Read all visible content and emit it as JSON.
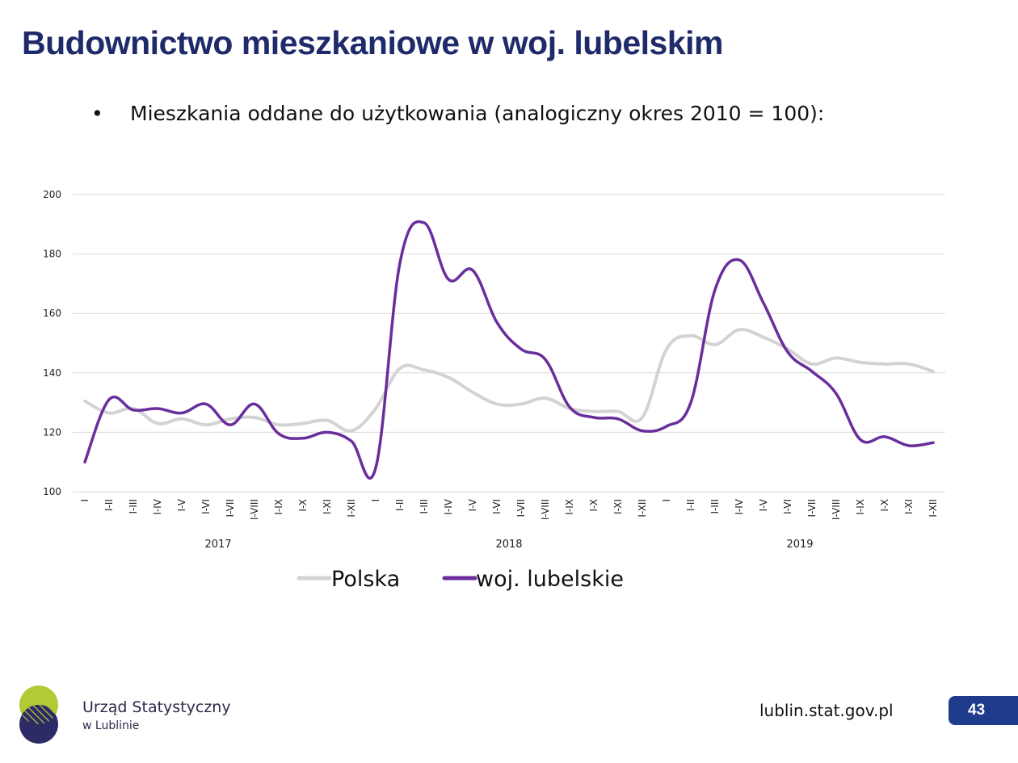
{
  "slide": {
    "title": "Budownictwo mieszkaniowe w woj. lubelskim",
    "bullet_symbol": "•",
    "bullet_text": "Mieszkania oddane do użytkowania (analogiczny okres 2010 = 100):",
    "footer": {
      "org_line1": "Urząd Statystyczny",
      "org_line2": "w Lublinie",
      "website": "lublin.stat.gov.pl",
      "page_number": "43"
    }
  },
  "colors": {
    "title": "#1f2a6b",
    "polska": "#d3d3d3",
    "lubelskie": "#6a2e9c",
    "badge": "#1f3b8c",
    "logo_green": "#b3c935",
    "logo_navy": "#2d2b66"
  },
  "chart_data": {
    "type": "line",
    "categories": [
      "I",
      "I-II",
      "I-III",
      "I-IV",
      "I-V",
      "I-VI",
      "I-VII",
      "I-VIII",
      "I-IX",
      "I-X",
      "I-XI",
      "I-XII",
      "I",
      "I-II",
      "I-III",
      "I-IV",
      "I-V",
      "I-VI",
      "I-VII",
      "I-VIII",
      "I-IX",
      "I-X",
      "I-XI",
      "I-XII",
      "I",
      "I-II",
      "I-III",
      "I-IV",
      "I-V",
      "I-VI",
      "I-VII",
      "I-VIII",
      "I-IX",
      "I-X",
      "I-XI",
      "I-XII"
    ],
    "groups": [
      {
        "label": "2017",
        "start": 0,
        "end": 11
      },
      {
        "label": "2018",
        "start": 12,
        "end": 23
      },
      {
        "label": "2019",
        "start": 24,
        "end": 35
      }
    ],
    "series": [
      {
        "name": "Polska",
        "color": "#d3d3d3",
        "values": [
          130.5,
          126.5,
          128,
          123,
          124.5,
          122.5,
          124.5,
          125,
          122.5,
          123,
          124,
          120.5,
          128,
          141.5,
          141,
          138.5,
          133.5,
          129.5,
          129.5,
          131.5,
          128,
          127,
          127,
          125,
          148,
          152.5,
          149.5,
          154.5,
          152,
          148,
          143,
          145,
          143.5,
          143,
          143,
          140.5
        ]
      },
      {
        "name": "woj. lubelskie",
        "color": "#6a2e9c",
        "values": [
          110,
          131,
          127.5,
          128,
          126.5,
          129.5,
          122.5,
          129.5,
          119.5,
          118,
          120,
          117,
          108,
          177,
          190.5,
          171.5,
          174.5,
          157,
          148,
          144.5,
          128.5,
          125,
          124.5,
          120.5,
          122,
          130,
          168,
          178,
          163.5,
          147,
          140.5,
          133,
          117.5,
          118.5,
          115.5,
          116.5
        ]
      }
    ],
    "yticks": [
      100,
      120,
      140,
      160,
      180,
      200
    ],
    "ylim": [
      100,
      200
    ],
    "legend": {
      "position": "bottom",
      "entries": [
        "Polska",
        "woj. lubelskie"
      ]
    },
    "grid": true,
    "title": "",
    "xlabel": "",
    "ylabel": ""
  }
}
